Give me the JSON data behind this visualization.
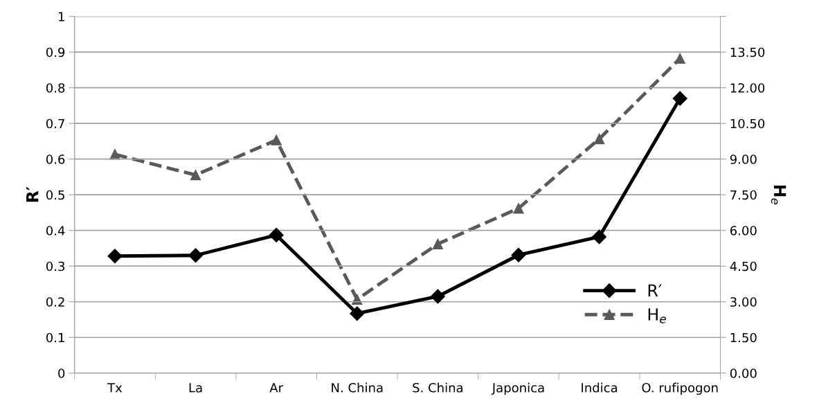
{
  "chart_data": {
    "type": "line",
    "categories": [
      "Tx",
      "La",
      "Ar",
      "N. China",
      "S. China",
      "Japonica",
      "Indica",
      "O. rufipogon"
    ],
    "series": [
      {
        "name": "R′",
        "color": "#000000",
        "marker": "diamond",
        "line_style": "solid",
        "values": [
          0.328,
          0.33,
          0.387,
          0.167,
          0.215,
          0.331,
          0.382,
          0.77
        ]
      },
      {
        "name": "H$_{e}$",
        "color": "#595959",
        "marker": "triangle",
        "line_style": "dashed",
        "axis": "y2",
        "values": [
          9.2,
          8.33,
          9.8,
          3.1,
          5.43,
          6.93,
          9.85,
          13.23
        ]
      }
    ],
    "ylabel": "R′",
    "y2label": "H$_{e}$",
    "ylim": [
      0,
      1
    ],
    "yticks": [
      0,
      0.1,
      0.2,
      0.3,
      0.4,
      0.5,
      0.6,
      0.7,
      0.8,
      0.9,
      1
    ],
    "y2lim": [
      0,
      15
    ],
    "y2ticks": [
      {
        "value": 0,
        "label": "0.00"
      },
      {
        "value": 1.5,
        "label": "1.50"
      },
      {
        "value": 3,
        "label": "3.00"
      },
      {
        "value": 4.5,
        "label": "4.50"
      },
      {
        "value": 6,
        "label": "6.00"
      },
      {
        "value": 7.5,
        "label": "7.50"
      },
      {
        "value": 9,
        "label": "9.00"
      },
      {
        "value": 10.5,
        "label": "10.50"
      },
      {
        "value": 12,
        "label": "12.00"
      },
      {
        "value": 13.5,
        "label": "13.50"
      },
      {
        "value": 15,
        "label": null
      }
    ],
    "grid": "y",
    "legend": "bottom right"
  }
}
